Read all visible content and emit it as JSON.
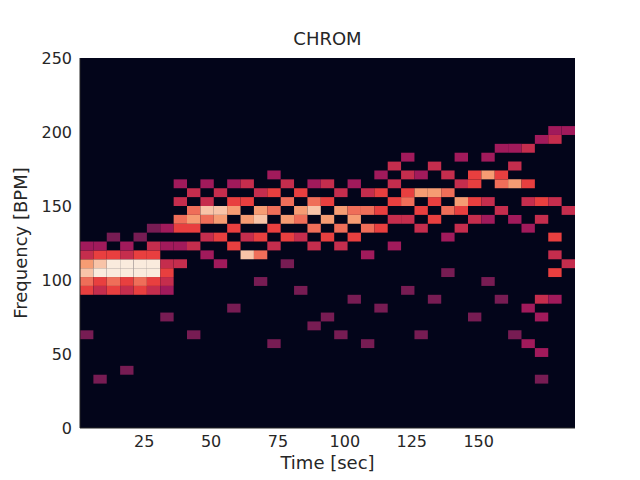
{
  "chart_data": {
    "type": "heatmap",
    "title": "CHROM",
    "x_label": "Time [sec]",
    "y_label": "Frequency [BPM]",
    "xlim": [
      1,
      186
    ],
    "ylim": [
      0,
      250
    ],
    "xticks": [
      25,
      50,
      75,
      100,
      125,
      150
    ],
    "yticks": [
      0,
      50,
      100,
      150,
      200,
      250
    ],
    "grid": false,
    "cell_size": [
      5,
      6
    ],
    "zlim": [
      0,
      1
    ],
    "cells": [
      [
        1,
        90,
        0.6
      ],
      [
        1,
        96,
        0.7
      ],
      [
        1,
        102,
        0.9
      ],
      [
        1,
        108,
        0.8
      ],
      [
        1,
        114,
        0.5
      ],
      [
        1,
        120,
        0.4
      ],
      [
        1,
        60,
        0.3
      ],
      [
        6,
        90,
        0.5
      ],
      [
        6,
        96,
        0.6
      ],
      [
        6,
        102,
        1.0
      ],
      [
        6,
        108,
        0.9
      ],
      [
        6,
        114,
        0.6
      ],
      [
        6,
        120,
        0.4
      ],
      [
        6,
        30,
        0.3
      ],
      [
        11,
        90,
        0.6
      ],
      [
        11,
        96,
        0.7
      ],
      [
        11,
        102,
        1.0
      ],
      [
        11,
        108,
        1.0
      ],
      [
        11,
        114,
        0.6
      ],
      [
        11,
        126,
        0.3
      ],
      [
        16,
        90,
        0.5
      ],
      [
        16,
        96,
        0.6
      ],
      [
        16,
        102,
        1.0
      ],
      [
        16,
        108,
        1.0
      ],
      [
        16,
        114,
        0.5
      ],
      [
        16,
        120,
        0.4
      ],
      [
        16,
        36,
        0.3
      ],
      [
        21,
        90,
        0.6
      ],
      [
        21,
        96,
        0.7
      ],
      [
        21,
        102,
        1.0
      ],
      [
        21,
        108,
        1.0
      ],
      [
        21,
        114,
        0.6
      ],
      [
        21,
        126,
        0.3
      ],
      [
        26,
        90,
        0.5
      ],
      [
        26,
        96,
        0.6
      ],
      [
        26,
        102,
        1.0
      ],
      [
        26,
        108,
        1.0
      ],
      [
        26,
        114,
        0.6
      ],
      [
        26,
        120,
        0.5
      ],
      [
        26,
        132,
        0.3
      ],
      [
        31,
        90,
        0.4
      ],
      [
        31,
        96,
        0.5
      ],
      [
        31,
        102,
        0.6
      ],
      [
        31,
        108,
        0.5
      ],
      [
        31,
        120,
        0.4
      ],
      [
        31,
        132,
        0.4
      ],
      [
        31,
        72,
        0.3
      ],
      [
        36,
        108,
        0.5
      ],
      [
        36,
        120,
        0.4
      ],
      [
        36,
        132,
        0.6
      ],
      [
        36,
        138,
        0.7
      ],
      [
        36,
        150,
        0.5
      ],
      [
        36,
        162,
        0.4
      ],
      [
        41,
        120,
        0.5
      ],
      [
        41,
        132,
        0.6
      ],
      [
        41,
        138,
        0.8
      ],
      [
        41,
        144,
        0.7
      ],
      [
        41,
        156,
        0.5
      ],
      [
        41,
        60,
        0.3
      ],
      [
        46,
        126,
        0.5
      ],
      [
        46,
        138,
        0.7
      ],
      [
        46,
        144,
        0.9
      ],
      [
        46,
        150,
        0.5
      ],
      [
        46,
        162,
        0.4
      ],
      [
        46,
        114,
        0.4
      ],
      [
        51,
        126,
        0.6
      ],
      [
        51,
        138,
        0.8
      ],
      [
        51,
        144,
        0.9
      ],
      [
        51,
        156,
        0.5
      ],
      [
        51,
        108,
        0.4
      ],
      [
        56,
        120,
        0.6
      ],
      [
        56,
        132,
        0.6
      ],
      [
        56,
        144,
        0.8
      ],
      [
        56,
        150,
        0.6
      ],
      [
        56,
        162,
        0.4
      ],
      [
        56,
        78,
        0.3
      ],
      [
        61,
        114,
        0.9
      ],
      [
        61,
        126,
        0.5
      ],
      [
        61,
        138,
        0.8
      ],
      [
        61,
        150,
        0.6
      ],
      [
        61,
        162,
        0.5
      ],
      [
        66,
        114,
        0.7
      ],
      [
        66,
        126,
        0.6
      ],
      [
        66,
        138,
        0.9
      ],
      [
        66,
        144,
        0.8
      ],
      [
        66,
        156,
        0.5
      ],
      [
        66,
        96,
        0.3
      ],
      [
        71,
        120,
        0.5
      ],
      [
        71,
        132,
        0.6
      ],
      [
        71,
        144,
        0.7
      ],
      [
        71,
        156,
        0.6
      ],
      [
        71,
        168,
        0.4
      ],
      [
        71,
        54,
        0.3
      ],
      [
        76,
        126,
        0.6
      ],
      [
        76,
        138,
        0.8
      ],
      [
        76,
        150,
        0.7
      ],
      [
        76,
        162,
        0.5
      ],
      [
        76,
        108,
        0.3
      ],
      [
        81,
        126,
        0.5
      ],
      [
        81,
        138,
        0.7
      ],
      [
        81,
        144,
        0.8
      ],
      [
        81,
        156,
        0.6
      ],
      [
        81,
        90,
        0.3
      ],
      [
        86,
        120,
        0.5
      ],
      [
        86,
        132,
        0.7
      ],
      [
        86,
        144,
        0.9
      ],
      [
        86,
        150,
        0.7
      ],
      [
        86,
        162,
        0.4
      ],
      [
        86,
        66,
        0.3
      ],
      [
        91,
        126,
        0.6
      ],
      [
        91,
        138,
        0.8
      ],
      [
        91,
        150,
        0.6
      ],
      [
        91,
        162,
        0.5
      ],
      [
        91,
        72,
        0.3
      ],
      [
        96,
        120,
        0.5
      ],
      [
        96,
        132,
        0.7
      ],
      [
        96,
        144,
        0.8
      ],
      [
        96,
        156,
        0.5
      ],
      [
        96,
        60,
        0.3
      ],
      [
        101,
        126,
        0.6
      ],
      [
        101,
        138,
        0.8
      ],
      [
        101,
        144,
        0.7
      ],
      [
        101,
        162,
        0.4
      ],
      [
        101,
        84,
        0.3
      ],
      [
        106,
        132,
        0.7
      ],
      [
        106,
        144,
        0.7
      ],
      [
        106,
        156,
        0.5
      ],
      [
        106,
        114,
        0.4
      ],
      [
        106,
        54,
        0.3
      ],
      [
        111,
        132,
        0.6
      ],
      [
        111,
        144,
        0.6
      ],
      [
        111,
        156,
        0.6
      ],
      [
        111,
        168,
        0.4
      ],
      [
        111,
        78,
        0.3
      ],
      [
        116,
        138,
        0.5
      ],
      [
        116,
        150,
        0.6
      ],
      [
        116,
        162,
        0.5
      ],
      [
        116,
        174,
        0.5
      ],
      [
        116,
        120,
        0.4
      ],
      [
        121,
        138,
        0.5
      ],
      [
        121,
        150,
        0.7
      ],
      [
        121,
        156,
        0.6
      ],
      [
        121,
        168,
        0.5
      ],
      [
        121,
        180,
        0.4
      ],
      [
        121,
        90,
        0.3
      ],
      [
        126,
        132,
        0.5
      ],
      [
        126,
        144,
        0.6
      ],
      [
        126,
        156,
        0.8
      ],
      [
        126,
        168,
        0.4
      ],
      [
        126,
        60,
        0.3
      ],
      [
        131,
        138,
        0.6
      ],
      [
        131,
        150,
        0.6
      ],
      [
        131,
        156,
        0.8
      ],
      [
        131,
        174,
        0.5
      ],
      [
        131,
        84,
        0.3
      ],
      [
        136,
        126,
        0.4
      ],
      [
        136,
        144,
        0.7
      ],
      [
        136,
        156,
        0.7
      ],
      [
        136,
        168,
        0.5
      ],
      [
        136,
        102,
        0.3
      ],
      [
        141,
        132,
        0.5
      ],
      [
        141,
        144,
        0.6
      ],
      [
        141,
        150,
        0.8
      ],
      [
        141,
        162,
        0.5
      ],
      [
        141,
        180,
        0.4
      ],
      [
        146,
        138,
        0.5
      ],
      [
        146,
        150,
        0.6
      ],
      [
        146,
        162,
        0.6
      ],
      [
        146,
        168,
        0.6
      ],
      [
        146,
        72,
        0.3
      ],
      [
        151,
        138,
        0.4
      ],
      [
        151,
        150,
        0.5
      ],
      [
        151,
        168,
        0.8
      ],
      [
        151,
        180,
        0.4
      ],
      [
        151,
        96,
        0.3
      ],
      [
        156,
        144,
        0.5
      ],
      [
        156,
        162,
        0.7
      ],
      [
        156,
        168,
        0.6
      ],
      [
        156,
        186,
        0.4
      ],
      [
        156,
        84,
        0.3
      ],
      [
        161,
        138,
        0.4
      ],
      [
        161,
        162,
        0.8
      ],
      [
        161,
        174,
        0.5
      ],
      [
        161,
        186,
        0.4
      ],
      [
        161,
        60,
        0.3
      ],
      [
        166,
        132,
        0.4
      ],
      [
        166,
        150,
        0.5
      ],
      [
        166,
        162,
        0.6
      ],
      [
        166,
        186,
        0.5
      ],
      [
        166,
        78,
        0.4
      ],
      [
        166,
        54,
        0.4
      ],
      [
        171,
        138,
        0.5
      ],
      [
        171,
        150,
        0.6
      ],
      [
        171,
        192,
        0.4
      ],
      [
        171,
        84,
        0.5
      ],
      [
        171,
        72,
        0.4
      ],
      [
        171,
        48,
        0.4
      ],
      [
        171,
        30,
        0.3
      ],
      [
        176,
        102,
        0.6
      ],
      [
        176,
        114,
        0.5
      ],
      [
        176,
        126,
        0.6
      ],
      [
        176,
        150,
        0.5
      ],
      [
        176,
        192,
        0.5
      ],
      [
        176,
        198,
        0.4
      ],
      [
        176,
        84,
        0.4
      ],
      [
        181,
        108,
        0.5
      ],
      [
        181,
        144,
        0.5
      ],
      [
        181,
        198,
        0.4
      ]
    ]
  }
}
